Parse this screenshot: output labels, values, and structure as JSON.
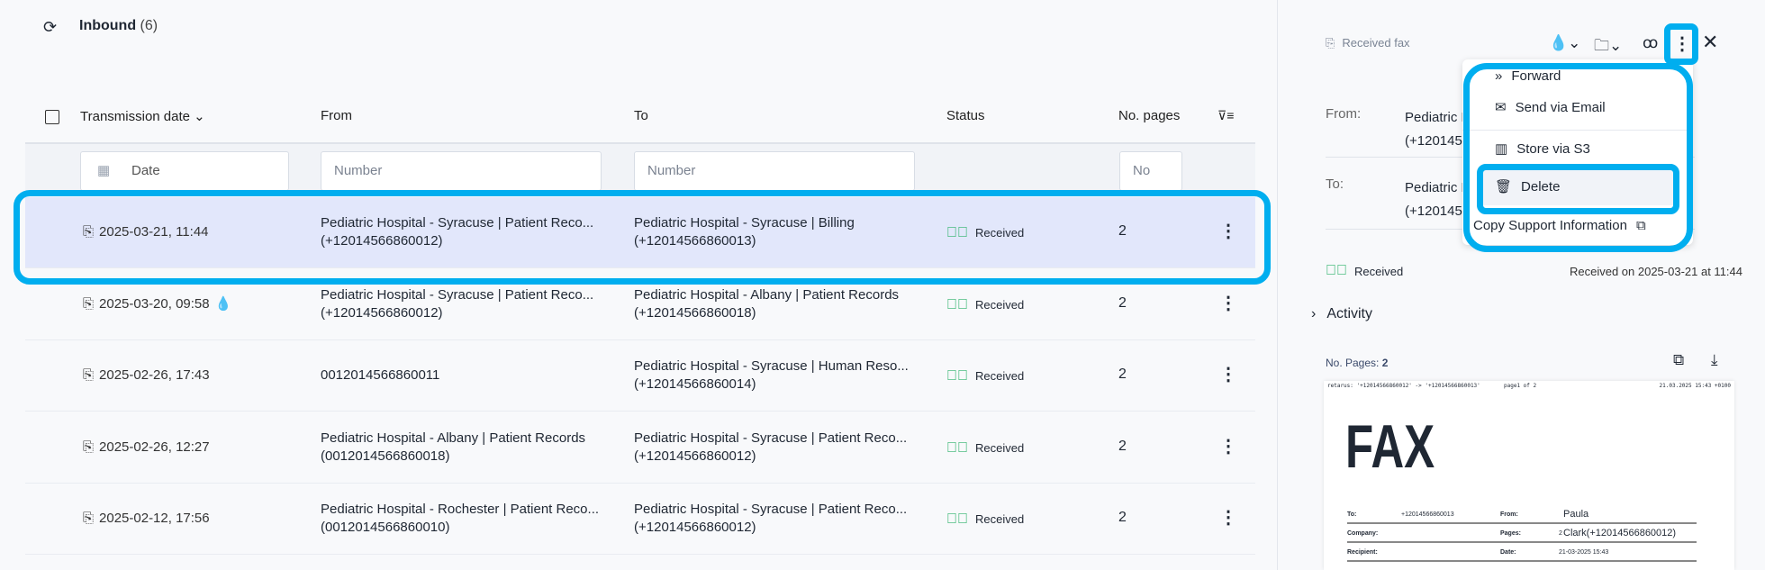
{
  "list": {
    "title": "Inbound",
    "count": "(6)",
    "columns": {
      "date": "Transmission date",
      "from": "From",
      "to": "To",
      "status": "Status",
      "pages": "No. pages"
    },
    "filters": {
      "date": "Date",
      "from": "Number",
      "to": "Number",
      "pages": "No"
    },
    "rows": [
      {
        "date": "2025-03-21, 11:44",
        "from": "Pediatric Hospital - Syracuse | Patient Reco...",
        "from_num": "(+12014566860012)",
        "to": "Pediatric Hospital - Syracuse | Billing",
        "to_num": "(+12014566860013)",
        "status": "Received",
        "pages": "2",
        "selected": true
      },
      {
        "date": "2025-03-20, 09:58",
        "from": "Pediatric Hospital - Syracuse | Patient Reco...",
        "from_num": "(+12014566860012)",
        "to": "Pediatric Hospital - Albany | Patient Records",
        "to_num": "(+12014566860018)",
        "status": "Received",
        "pages": "2",
        "watermark": true
      },
      {
        "date": "2025-02-26, 17:43",
        "from": "0012014566860011",
        "from_num": "",
        "to": "Pediatric Hospital - Syracuse | Human Reso...",
        "to_num": "(+12014566860014)",
        "status": "Received",
        "pages": "2"
      },
      {
        "date": "2025-02-26, 12:27",
        "from": "Pediatric Hospital - Albany | Patient Records",
        "from_num": "(0012014566860018)",
        "to": "Pediatric Hospital - Syracuse | Patient Reco...",
        "to_num": "(+12014566860012)",
        "status": "Received",
        "pages": "2"
      },
      {
        "date": "2025-02-12, 17:56",
        "from": "Pediatric Hospital - Rochester | Patient Reco...",
        "from_num": "(0012014566860010)",
        "to": "Pediatric Hospital - Syracuse | Patient Reco...",
        "to_num": "(+12014566860012)",
        "status": "Received",
        "pages": "2"
      }
    ]
  },
  "panel": {
    "type": "Received fax",
    "from_label": "From:",
    "from_value": "Pediatric H",
    "from_num": "(+120145€",
    "to_label": "To:",
    "to_value": "Pediatric H",
    "to_num": "(+120145€",
    "status": "Received",
    "received_on": "Received on 2025-03-21 at 11:44",
    "activity": "Activity",
    "pages_label": "No. Pages:",
    "pages_value": "2"
  },
  "menu": {
    "items": [
      "Forward",
      "Send via Email",
      "Store via S3",
      "Delete",
      "Copy Support Information"
    ]
  },
  "fax": {
    "header_left": "retarus: '+12014566860012' -> '+12014566860013'",
    "header_mid": "page1 of 2",
    "header_right": "21.03.2025 15:43 +0100",
    "title": "FAX",
    "to_label": "To:",
    "to_value": "+12014566860013",
    "from_label": "From:",
    "from_value": "Paula Clark(+12014566860012)",
    "company_label": "Company:",
    "pages_label": "Pages:",
    "pages_value": "2",
    "recipient_label": "Recipient:",
    "date_label": "Date:",
    "date_value": "21-03-2025 15:43"
  },
  "colors": {
    "accent": "#00aeef",
    "selected_row": "#e2e7fb",
    "success": "#2fb36b"
  }
}
